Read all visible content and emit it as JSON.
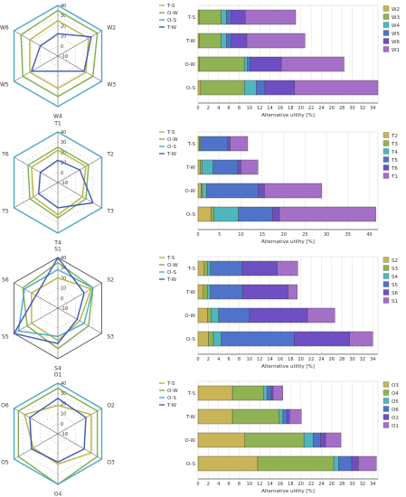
{
  "colors": {
    "T-S": "#b5b53e",
    "O-W": "#7fad4c",
    "O-S": "#4aa9c6",
    "T-W": "#4457b8",
    "seg": [
      "#c9b457",
      "#8fb253",
      "#50b6be",
      "#4e73c9",
      "#6d4fc3",
      "#a46fc7"
    ]
  },
  "chart_data": [
    {
      "type": "radar",
      "axes": [
        "W1",
        "W2",
        "W3",
        "W4",
        "W5",
        "W6"
      ],
      "ticks": [
        "40",
        "30",
        "20",
        "10",
        "0",
        "-10"
      ],
      "rlim": [
        -10,
        40
      ],
      "legend": [
        "T-S",
        "O-W",
        "O-S",
        "T-W"
      ],
      "series": [
        {
          "name": "T-S",
          "values": [
            25,
            25,
            22,
            22,
            22,
            22
          ]
        },
        {
          "name": "O-W",
          "values": [
            35,
            35,
            30,
            30,
            30,
            32
          ]
        },
        {
          "name": "O-S",
          "values": [
            40,
            40,
            40,
            40,
            40,
            40
          ]
        },
        {
          "name": "T-W",
          "values": [
            12,
            28,
            20,
            5,
            20,
            10
          ]
        }
      ]
    },
    {
      "type": "bar",
      "stacked": true,
      "orientation": "horizontal",
      "categories": [
        "T-S",
        "T-W",
        "O-W",
        "O-S"
      ],
      "xlabel": "Alternative utility [%]",
      "xlim": [
        0,
        35
      ],
      "xticks": [
        "0",
        "2",
        "4",
        "6",
        "8",
        "10",
        "12",
        "14",
        "16",
        "18",
        "20",
        "22",
        "24",
        "26",
        "28",
        "30",
        "32",
        "34"
      ],
      "series": [
        {
          "name": "W2",
          "values": [
            0.2,
            0.2,
            0.2,
            0.5
          ]
        },
        {
          "name": "W3",
          "values": [
            4.3,
            4.3,
            8.8,
            8.5
          ]
        },
        {
          "name": "W4",
          "values": [
            1.0,
            1.0,
            0.6,
            2.3
          ]
        },
        {
          "name": "W5",
          "values": [
            1.0,
            1.0,
            0.6,
            1.7
          ]
        },
        {
          "name": "W6",
          "values": [
            2.7,
            3.0,
            6.0,
            5.8
          ]
        },
        {
          "name": "W1",
          "values": [
            9.8,
            11.3,
            12.2,
            16.2
          ]
        }
      ]
    },
    {
      "type": "radar",
      "axes": [
        "T1",
        "T2",
        "T3",
        "T4",
        "T5",
        "T6"
      ],
      "ticks": [
        "40",
        "30",
        "20",
        "10",
        "0",
        "-10"
      ],
      "rlim": [
        -10,
        40
      ],
      "legend": [
        "T-S",
        "O-W",
        "O-S",
        "T-W"
      ],
      "series": [
        {
          "name": "T-S",
          "values": [
            22,
            22,
            18,
            22,
            18,
            20
          ]
        },
        {
          "name": "O-W",
          "values": [
            25,
            25,
            22,
            25,
            22,
            24
          ]
        },
        {
          "name": "O-S",
          "values": [
            40,
            40,
            40,
            40,
            40,
            40
          ]
        },
        {
          "name": "T-W",
          "values": [
            12,
            15,
            30,
            15,
            12,
            10
          ]
        }
      ]
    },
    {
      "type": "bar",
      "stacked": true,
      "orientation": "horizontal",
      "categories": [
        "T-S",
        "T-W",
        "O-W",
        "O-S"
      ],
      "xlabel": "Alternative utility [%]",
      "xlim": [
        0,
        42
      ],
      "xticks": [
        "0",
        "5",
        "10",
        "15",
        "20",
        "25",
        "30",
        "35",
        "40"
      ],
      "series": [
        {
          "name": "T2",
          "values": [
            0.3,
            0.5,
            0.7,
            3.0
          ]
        },
        {
          "name": "T3",
          "values": [
            0.2,
            0.5,
            0.3,
            0.7
          ]
        },
        {
          "name": "T4",
          "values": [
            0.3,
            2.5,
            1.0,
            5.7
          ]
        },
        {
          "name": "T5",
          "values": [
            6.1,
            5.8,
            12.0,
            8.0
          ]
        },
        {
          "name": "T6",
          "values": [
            0.6,
            0.7,
            1.5,
            1.6
          ]
        },
        {
          "name": "T1",
          "values": [
            4.1,
            4.0,
            13.4,
            22.5
          ]
        }
      ]
    },
    {
      "type": "radar",
      "axes": [
        "S1",
        "S2",
        "S3",
        "S4",
        "S5",
        "S6"
      ],
      "ticks": [
        "40",
        "30",
        "20",
        "10",
        "0",
        "-10"
      ],
      "rlim": [
        -10,
        40
      ],
      "legend": [
        "T-S",
        "O-W",
        "O-S",
        "T-W"
      ],
      "series": [
        {
          "name": "T-S",
          "values": [
            20,
            28,
            15,
            22,
            20,
            20
          ]
        },
        {
          "name": "O-W",
          "values": [
            35,
            30,
            25,
            30,
            25,
            30
          ]
        },
        {
          "name": "O-S",
          "values": [
            28,
            30,
            20,
            18,
            35,
            28
          ]
        },
        {
          "name": "T-W",
          "values": [
            40,
            20,
            12,
            25,
            40,
            15
          ]
        }
      ]
    },
    {
      "type": "bar",
      "stacked": true,
      "orientation": "horizontal",
      "categories": [
        "T-S",
        "T-W",
        "O-W",
        "O-S"
      ],
      "xlabel": "Alternative utility [%]",
      "xlim": [
        0,
        35
      ],
      "xticks": [
        "0",
        "2",
        "4",
        "6",
        "8",
        "10",
        "12",
        "14",
        "16",
        "18",
        "20",
        "22",
        "24",
        "26",
        "28",
        "30",
        "32",
        "34"
      ],
      "series": [
        {
          "name": "S2",
          "values": [
            1.2,
            1.0,
            1.8,
            2.0
          ]
        },
        {
          "name": "S3",
          "values": [
            0.6,
            0.8,
            0.7,
            1.0
          ]
        },
        {
          "name": "S4",
          "values": [
            0.6,
            0.6,
            1.5,
            1.5
          ]
        },
        {
          "name": "S5",
          "values": [
            6.2,
            6.3,
            6.0,
            14.2
          ]
        },
        {
          "name": "S6",
          "values": [
            6.8,
            8.8,
            11.3,
            10.8
          ]
        },
        {
          "name": "S1",
          "values": [
            4.0,
            1.8,
            5.3,
            4.5
          ]
        }
      ]
    },
    {
      "type": "radar",
      "axes": [
        "O1",
        "O2",
        "O3",
        "O4",
        "O5",
        "O6"
      ],
      "ticks": [
        "40",
        "30",
        "20",
        "10",
        "0",
        "-10"
      ],
      "rlim": [
        -10,
        40
      ],
      "legend": [
        "T-S",
        "O-W",
        "O-S",
        "T-W"
      ],
      "series": [
        {
          "name": "T-S",
          "values": [
            18,
            28,
            28,
            20,
            18,
            28
          ]
        },
        {
          "name": "O-W",
          "values": [
            35,
            35,
            35,
            40,
            35,
            35
          ]
        },
        {
          "name": "O-S",
          "values": [
            40,
            40,
            40,
            40,
            40,
            40
          ]
        },
        {
          "name": "T-W",
          "values": [
            25,
            22,
            20,
            18,
            20,
            22
          ]
        }
      ]
    },
    {
      "type": "bar",
      "stacked": true,
      "orientation": "horizontal",
      "categories": [
        "T-S",
        "T-W",
        "O-W",
        "O-S"
      ],
      "xlabel": "Alternative utility [%]",
      "xlim": [
        0,
        35
      ],
      "xticks": [
        "0",
        "2",
        "4",
        "6",
        "8",
        "10",
        "12",
        "14",
        "16",
        "18",
        "20",
        "22",
        "24",
        "26",
        "28",
        "30",
        "32",
        "34"
      ],
      "series": [
        {
          "name": "O3",
          "values": [
            6.7,
            6.7,
            9.1,
            11.6
          ]
        },
        {
          "name": "O4",
          "values": [
            6.0,
            9.1,
            11.5,
            14.8
          ]
        },
        {
          "name": "O5",
          "values": [
            0.7,
            0.7,
            1.8,
            0.9
          ]
        },
        {
          "name": "O6",
          "values": [
            0.8,
            0.8,
            1.4,
            2.6
          ]
        },
        {
          "name": "O2",
          "values": [
            0.4,
            0.5,
            1.0,
            1.3
          ]
        },
        {
          "name": "O1",
          "values": [
            1.9,
            2.3,
            3.0,
            3.5
          ]
        }
      ]
    }
  ]
}
